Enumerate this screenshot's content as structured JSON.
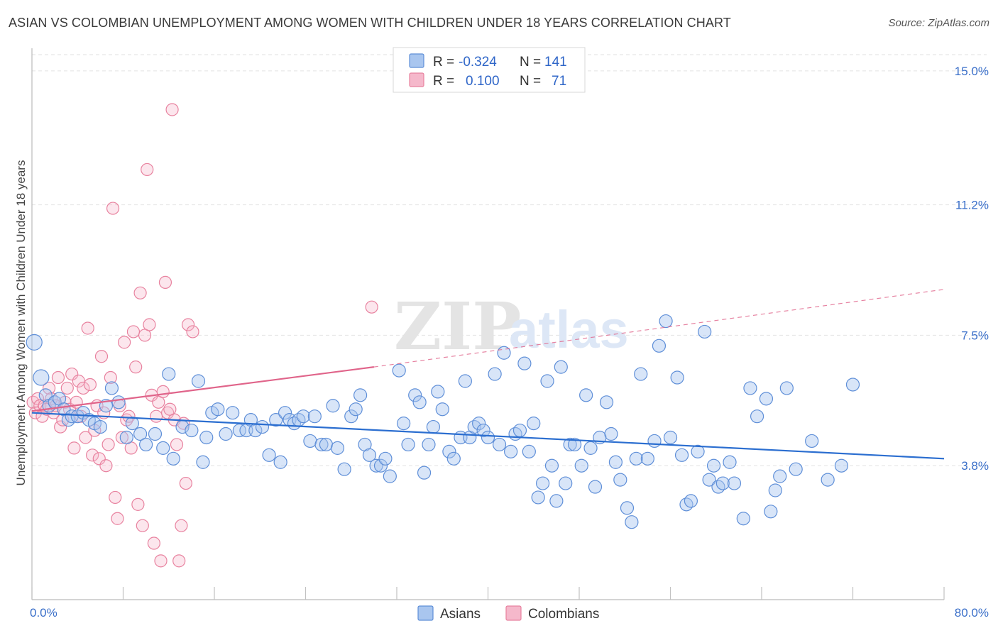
{
  "header": {
    "title": "ASIAN VS COLOMBIAN UNEMPLOYMENT AMONG WOMEN WITH CHILDREN UNDER 18 YEARS CORRELATION CHART",
    "source": "Source: ZipAtlas.com"
  },
  "watermark": {
    "zip": "ZIP",
    "atlas": "atlas"
  },
  "legend": {
    "rows": [
      {
        "r_label": "R =",
        "r_value": "-0.324",
        "n_label": "N =",
        "n_value": "141"
      },
      {
        "r_label": "R =",
        "r_value": "0.100",
        "n_label": "N =",
        "n_value": "71"
      }
    ]
  },
  "bottom_legend": {
    "asians": "Asians",
    "colombians": "Colombians"
  },
  "colors": {
    "asian_fill": "#a9c6ef",
    "asian_stroke": "#5f8fd8",
    "asian_line": "#2b6ed0",
    "colombian_fill": "#f5b8cb",
    "colombian_stroke": "#e8829f",
    "colombian_line": "#e0648a",
    "tick_label": "#3a6fc9",
    "grid": "#e2e2e2"
  },
  "chart_data": {
    "type": "scatter",
    "xlabel": "",
    "ylabel": "Unemployment Among Women with Children Under 18 years",
    "xlim": [
      0,
      80
    ],
    "ylim": [
      0,
      15.5
    ],
    "x_tick_labels": {
      "min": "0.0%",
      "max": "80.0%"
    },
    "y_ticks": [
      {
        "value": 3.8,
        "label": "3.8%"
      },
      {
        "value": 7.5,
        "label": "7.5%"
      },
      {
        "value": 11.2,
        "label": "11.2%"
      },
      {
        "value": 15.0,
        "label": "15.0%"
      }
    ],
    "grid": true,
    "legend_position": "top-center",
    "series": [
      {
        "name": "Asians",
        "r": -0.324,
        "n": 141,
        "trend": {
          "x": [
            0,
            80
          ],
          "y": [
            5.3,
            4.0
          ]
        },
        "points": [
          [
            0.2,
            7.3
          ],
          [
            0.8,
            6.3
          ],
          [
            1.2,
            5.8
          ],
          [
            1.5,
            5.5
          ],
          [
            2.0,
            5.6
          ],
          [
            2.4,
            5.7
          ],
          [
            2.8,
            5.4
          ],
          [
            3.2,
            5.1
          ],
          [
            3.5,
            5.2
          ],
          [
            4.0,
            5.2
          ],
          [
            4.5,
            5.3
          ],
          [
            5.0,
            5.1
          ],
          [
            5.5,
            5.0
          ],
          [
            6.0,
            4.9
          ],
          [
            6.5,
            5.5
          ],
          [
            7.0,
            6.0
          ],
          [
            7.6,
            5.6
          ],
          [
            8.3,
            4.6
          ],
          [
            8.8,
            5.0
          ],
          [
            9.5,
            4.7
          ],
          [
            10.0,
            4.4
          ],
          [
            10.8,
            4.7
          ],
          [
            11.5,
            4.3
          ],
          [
            12.0,
            6.4
          ],
          [
            12.4,
            4.0
          ],
          [
            13.2,
            4.9
          ],
          [
            14.0,
            4.8
          ],
          [
            14.6,
            6.2
          ],
          [
            15.0,
            3.9
          ],
          [
            15.3,
            4.6
          ],
          [
            15.8,
            5.3
          ],
          [
            16.3,
            5.4
          ],
          [
            17.0,
            4.7
          ],
          [
            17.6,
            5.3
          ],
          [
            18.2,
            4.8
          ],
          [
            18.8,
            4.8
          ],
          [
            19.2,
            5.1
          ],
          [
            19.6,
            4.8
          ],
          [
            20.2,
            4.9
          ],
          [
            20.8,
            4.1
          ],
          [
            21.4,
            5.1
          ],
          [
            21.8,
            3.9
          ],
          [
            22.2,
            5.3
          ],
          [
            22.6,
            5.1
          ],
          [
            23.0,
            5.0
          ],
          [
            23.4,
            5.1
          ],
          [
            23.8,
            5.2
          ],
          [
            24.4,
            4.5
          ],
          [
            24.8,
            5.2
          ],
          [
            25.4,
            4.4
          ],
          [
            25.8,
            4.4
          ],
          [
            26.4,
            5.5
          ],
          [
            26.8,
            4.3
          ],
          [
            27.4,
            3.7
          ],
          [
            28.0,
            5.2
          ],
          [
            28.4,
            5.4
          ],
          [
            28.8,
            5.8
          ],
          [
            29.2,
            4.4
          ],
          [
            29.6,
            4.1
          ],
          [
            30.2,
            3.8
          ],
          [
            30.6,
            3.8
          ],
          [
            31.0,
            4.0
          ],
          [
            31.4,
            3.5
          ],
          [
            32.2,
            6.5
          ],
          [
            32.6,
            5.0
          ],
          [
            33.0,
            4.4
          ],
          [
            33.6,
            5.8
          ],
          [
            34.0,
            5.6
          ],
          [
            34.4,
            3.6
          ],
          [
            34.8,
            4.4
          ],
          [
            35.2,
            4.9
          ],
          [
            35.6,
            5.9
          ],
          [
            36.0,
            5.4
          ],
          [
            36.6,
            4.2
          ],
          [
            37.0,
            4.0
          ],
          [
            37.6,
            4.6
          ],
          [
            38.0,
            6.2
          ],
          [
            38.4,
            4.6
          ],
          [
            38.8,
            4.9
          ],
          [
            39.2,
            5.0
          ],
          [
            39.6,
            4.8
          ],
          [
            40.0,
            4.6
          ],
          [
            40.6,
            6.4
          ],
          [
            41.0,
            4.4
          ],
          [
            41.4,
            7.0
          ],
          [
            42.0,
            4.2
          ],
          [
            42.4,
            4.7
          ],
          [
            42.8,
            4.8
          ],
          [
            43.2,
            6.7
          ],
          [
            43.6,
            4.2
          ],
          [
            44.0,
            5.0
          ],
          [
            44.4,
            2.9
          ],
          [
            44.8,
            3.3
          ],
          [
            45.2,
            6.2
          ],
          [
            45.6,
            3.8
          ],
          [
            46.0,
            2.8
          ],
          [
            46.4,
            6.6
          ],
          [
            46.8,
            3.3
          ],
          [
            47.2,
            4.4
          ],
          [
            47.6,
            4.4
          ],
          [
            48.2,
            3.8
          ],
          [
            48.6,
            5.8
          ],
          [
            49.0,
            4.3
          ],
          [
            49.4,
            3.2
          ],
          [
            49.8,
            4.6
          ],
          [
            50.4,
            5.6
          ],
          [
            50.8,
            4.7
          ],
          [
            51.2,
            3.9
          ],
          [
            51.6,
            3.4
          ],
          [
            52.2,
            2.6
          ],
          [
            52.6,
            2.2
          ],
          [
            53.0,
            4.0
          ],
          [
            53.4,
            6.4
          ],
          [
            54.0,
            4.0
          ],
          [
            54.6,
            4.5
          ],
          [
            55.0,
            7.2
          ],
          [
            55.6,
            7.9
          ],
          [
            56.0,
            4.6
          ],
          [
            56.6,
            6.3
          ],
          [
            57.0,
            4.1
          ],
          [
            57.4,
            2.7
          ],
          [
            57.8,
            2.8
          ],
          [
            58.4,
            4.2
          ],
          [
            59.0,
            7.6
          ],
          [
            59.4,
            3.4
          ],
          [
            59.8,
            3.8
          ],
          [
            60.2,
            3.2
          ],
          [
            60.6,
            3.3
          ],
          [
            61.2,
            3.9
          ],
          [
            61.6,
            3.3
          ],
          [
            62.4,
            2.3
          ],
          [
            63.0,
            6.0
          ],
          [
            63.6,
            5.2
          ],
          [
            64.4,
            5.7
          ],
          [
            64.8,
            2.5
          ],
          [
            65.2,
            3.1
          ],
          [
            65.6,
            3.5
          ],
          [
            66.2,
            6.0
          ],
          [
            67.0,
            3.7
          ],
          [
            68.4,
            4.5
          ],
          [
            69.8,
            3.4
          ],
          [
            71.0,
            3.8
          ],
          [
            72.0,
            6.1
          ]
        ]
      },
      {
        "name": "Colombians",
        "r": 0.1,
        "n": 71,
        "trend": {
          "x": [
            0,
            30
          ],
          "y": [
            5.35,
            6.6
          ],
          "dashed_x": [
            30,
            80
          ],
          "dashed_y": [
            6.6,
            8.8
          ]
        },
        "points": [
          [
            0.1,
            5.6
          ],
          [
            0.3,
            5.3
          ],
          [
            0.5,
            5.7
          ],
          [
            0.7,
            5.5
          ],
          [
            0.9,
            5.2
          ],
          [
            1.1,
            5.5
          ],
          [
            1.3,
            5.4
          ],
          [
            1.5,
            6.0
          ],
          [
            1.7,
            5.7
          ],
          [
            1.9,
            5.3
          ],
          [
            2.1,
            5.5
          ],
          [
            2.3,
            6.3
          ],
          [
            2.5,
            4.9
          ],
          [
            2.7,
            5.1
          ],
          [
            2.9,
            5.6
          ],
          [
            3.1,
            6.0
          ],
          [
            3.3,
            5.4
          ],
          [
            3.5,
            6.4
          ],
          [
            3.7,
            4.3
          ],
          [
            3.9,
            5.6
          ],
          [
            4.1,
            6.2
          ],
          [
            4.3,
            5.2
          ],
          [
            4.5,
            6.0
          ],
          [
            4.7,
            4.6
          ],
          [
            4.9,
            7.7
          ],
          [
            5.1,
            6.1
          ],
          [
            5.3,
            4.1
          ],
          [
            5.5,
            4.8
          ],
          [
            5.7,
            5.5
          ],
          [
            5.9,
            4.0
          ],
          [
            6.1,
            6.9
          ],
          [
            6.3,
            5.3
          ],
          [
            6.5,
            3.8
          ],
          [
            6.7,
            4.4
          ],
          [
            6.9,
            6.3
          ],
          [
            7.1,
            11.1
          ],
          [
            7.3,
            2.9
          ],
          [
            7.5,
            2.3
          ],
          [
            7.7,
            5.5
          ],
          [
            7.9,
            4.6
          ],
          [
            8.1,
            7.3
          ],
          [
            8.3,
            5.1
          ],
          [
            8.5,
            5.2
          ],
          [
            8.7,
            4.3
          ],
          [
            8.9,
            7.6
          ],
          [
            9.1,
            6.6
          ],
          [
            9.3,
            2.7
          ],
          [
            9.5,
            8.7
          ],
          [
            9.7,
            2.1
          ],
          [
            9.9,
            7.5
          ],
          [
            10.1,
            12.2
          ],
          [
            10.3,
            7.8
          ],
          [
            10.5,
            5.8
          ],
          [
            10.7,
            1.6
          ],
          [
            10.9,
            5.2
          ],
          [
            11.1,
            5.6
          ],
          [
            11.3,
            1.1
          ],
          [
            11.5,
            5.9
          ],
          [
            11.7,
            9.0
          ],
          [
            11.9,
            5.3
          ],
          [
            12.1,
            5.4
          ],
          [
            12.3,
            13.9
          ],
          [
            12.5,
            5.1
          ],
          [
            12.7,
            4.4
          ],
          [
            12.9,
            1.1
          ],
          [
            13.1,
            2.1
          ],
          [
            13.3,
            5.0
          ],
          [
            13.5,
            3.3
          ],
          [
            13.7,
            7.8
          ],
          [
            14.1,
            7.6
          ],
          [
            29.8,
            8.3
          ]
        ]
      }
    ]
  }
}
